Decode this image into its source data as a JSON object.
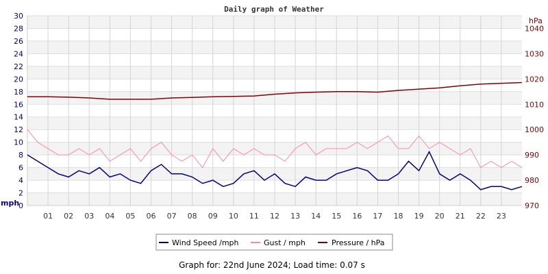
{
  "chart_data": {
    "type": "line",
    "title": "Daily graph of Weather",
    "ylabel_left": "mph",
    "ylabel_right": "hPa",
    "ylim_left": [
      0,
      30
    ],
    "ylim_right": [
      970,
      1045
    ],
    "xlim": [
      0,
      24
    ],
    "left_ticks": [
      "0",
      "2",
      "4",
      "6",
      "8",
      "10",
      "12",
      "14",
      "16",
      "18",
      "20",
      "22",
      "24",
      "26",
      "28",
      "30"
    ],
    "right_ticks": [
      "970",
      "980",
      "990",
      "1000",
      "1010",
      "1020",
      "1030",
      "1040"
    ],
    "x_ticks": [
      "01",
      "02",
      "03",
      "04",
      "05",
      "06",
      "07",
      "08",
      "09",
      "10",
      "11",
      "12",
      "13",
      "14",
      "15",
      "16",
      "17",
      "18",
      "19",
      "20",
      "21",
      "22",
      "23"
    ],
    "grid": true,
    "legend_position": "bottom",
    "series": [
      {
        "name": "Wind Speed /mph",
        "color": "#000080",
        "axis": "left",
        "x_step_hours": 0.5,
        "values": [
          8,
          7,
          6,
          5,
          4.5,
          5.5,
          5,
          6,
          4.5,
          5,
          4,
          3.5,
          5.5,
          6.5,
          5,
          5,
          4.5,
          3.5,
          4,
          3,
          3.5,
          5,
          5.5,
          4,
          5,
          3.5,
          3,
          4.5,
          4,
          4,
          5,
          5.5,
          6,
          5.5,
          4,
          4,
          5,
          7,
          5.5,
          8.5,
          5,
          4,
          5,
          4,
          2.5,
          3,
          3,
          2.5,
          3
        ]
      },
      {
        "name": "Gust / mph",
        "color": "#ff88aa",
        "axis": "left",
        "x_step_hours": 0.5,
        "values": [
          12,
          10,
          9,
          8,
          8,
          9,
          8,
          9,
          7,
          8,
          9,
          7,
          9,
          10,
          8,
          7,
          8,
          6,
          9,
          7,
          9,
          8,
          9,
          8,
          8,
          7,
          9,
          10,
          8,
          9,
          9,
          9,
          10,
          9,
          10,
          11,
          9,
          9,
          11,
          9,
          10,
          9,
          8,
          9,
          6,
          7,
          6,
          7,
          6
        ]
      },
      {
        "name": "Pressure / hPa",
        "color": "#800000",
        "axis": "right",
        "x_step_hours": 1,
        "values": [
          1013,
          1013,
          1012.8,
          1012.5,
          1012,
          1012,
          1012,
          1012.5,
          1012.7,
          1013,
          1013.1,
          1013.3,
          1014,
          1014.5,
          1014.8,
          1015,
          1015,
          1014.8,
          1015.5,
          1016,
          1016.5,
          1017.3,
          1018,
          1018.3,
          1018.6
        ]
      }
    ]
  },
  "footer": "Graph for: 22nd June 2024; Load time: 0.07 s"
}
